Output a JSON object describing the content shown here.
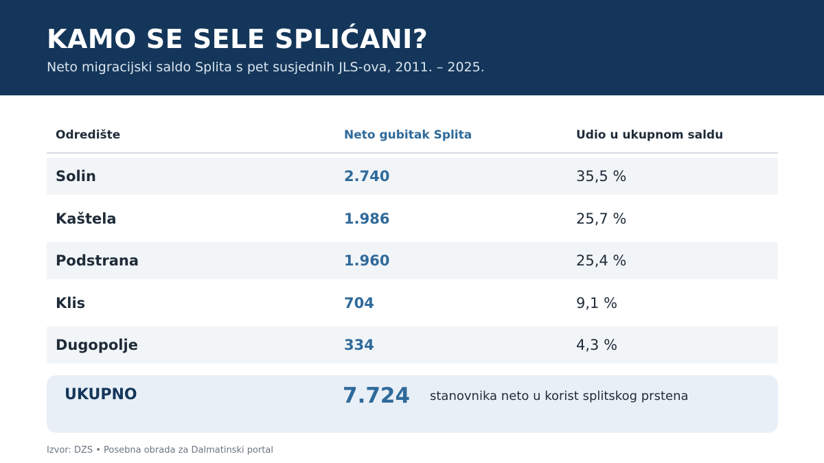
{
  "header": {
    "title": "KAMO SE SELE SPLIĆANI?",
    "subtitle": "Neto migracijski saldo Splita s pet susjednih JLS-ova, 2011. – 2025."
  },
  "table": {
    "columns": [
      "Odredište",
      "Neto gubitak Splita",
      "Udio u ukupnom saldu"
    ],
    "rows": [
      {
        "destination": "Solin",
        "net_loss": "2.740",
        "share": "35,5 %"
      },
      {
        "destination": "Kaštela",
        "net_loss": "1.986",
        "share": "25,7 %"
      },
      {
        "destination": "Podstrana",
        "net_loss": "1.960",
        "share": "25,4 %"
      },
      {
        "destination": "Klis",
        "net_loss": "704",
        "share": "9,1 %"
      },
      {
        "destination": "Dugopolje",
        "net_loss": "334",
        "share": "4,3 %"
      }
    ]
  },
  "total": {
    "label": "UKUPNO",
    "value": "7.724",
    "note": "stanovnika neto u korist splitskog prstena"
  },
  "source": "Izvor: DZS • Posebna obrada za Dalmatinski portal",
  "colors": {
    "header_bg": "#14365a",
    "accent_value": "#2f6a9a",
    "row_shade": "#f2f5f8",
    "total_bg": "#e8eff6"
  }
}
